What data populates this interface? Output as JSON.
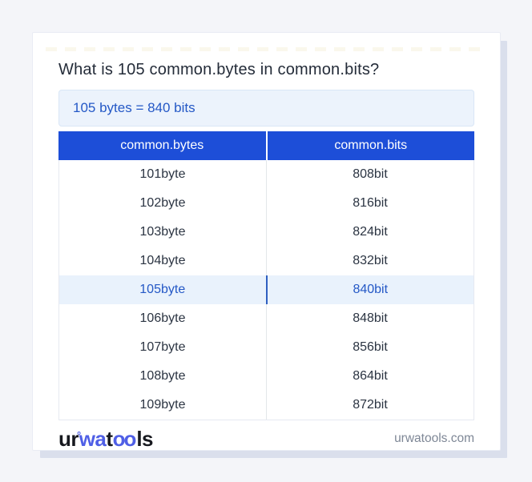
{
  "question": "What is 105 common.bytes in common.bits?",
  "result": "105 bytes = 840 bits",
  "table": {
    "headers": [
      "common.bytes",
      "common.bits"
    ],
    "rows": [
      {
        "from": "101byte",
        "to": "808bit",
        "highlight": false
      },
      {
        "from": "102byte",
        "to": "816bit",
        "highlight": false
      },
      {
        "from": "103byte",
        "to": "824bit",
        "highlight": false
      },
      {
        "from": "104byte",
        "to": "832bit",
        "highlight": false
      },
      {
        "from": "105byte",
        "to": "840bit",
        "highlight": true
      },
      {
        "from": "106byte",
        "to": "848bit",
        "highlight": false
      },
      {
        "from": "107byte",
        "to": "856bit",
        "highlight": false
      },
      {
        "from": "108byte",
        "to": "864bit",
        "highlight": false
      },
      {
        "from": "109byte",
        "to": "872bit",
        "highlight": false
      }
    ]
  },
  "footer": {
    "logo": {
      "part1": "ur",
      "ring": "°",
      "part2": "wa",
      "part3": "t",
      "part4": "oo",
      "part5": "ls"
    },
    "website": "urwatools.com"
  },
  "colors": {
    "page_bg": "#f4f5f9",
    "card_bg": "#ffffff",
    "header_blue": "#1d4ed8",
    "link_blue": "#2458c6",
    "result_bg": "#ecf3fc",
    "highlight_row_bg": "#e9f2fc",
    "highlight_divider": "#2f5fc0",
    "logo_blue": "#4f5fe6",
    "body_text": "#2b3442",
    "muted_text": "#7e8796"
  }
}
